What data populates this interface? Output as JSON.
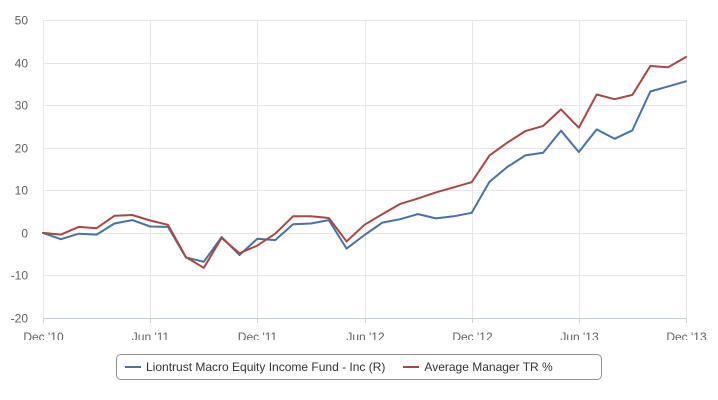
{
  "chart_data": {
    "type": "line",
    "x": [
      "Dec '10",
      "Jan '11",
      "Feb '11",
      "Mar '11",
      "Apr '11",
      "May '11",
      "Jun '11",
      "Jul '11",
      "Aug '11",
      "Sep '11",
      "Oct '11",
      "Nov '11",
      "Dec '11",
      "Jan '12",
      "Feb '12",
      "Mar '12",
      "Apr '12",
      "May '12",
      "Jun '12",
      "Jul '12",
      "Aug '12",
      "Sep '12",
      "Oct '12",
      "Nov '12",
      "Dec '12",
      "Jan '13",
      "Feb '13",
      "Mar '13",
      "Apr '13",
      "May '13",
      "Jun '13",
      "Jul '13",
      "Aug '13",
      "Sep '13",
      "Oct '13",
      "Nov '13",
      "Dec '13"
    ],
    "x_tick_labels": [
      "Dec '10",
      "Jun '11",
      "Dec '11",
      "Jun '12",
      "Dec '12",
      "Jun '13",
      "Dec '13"
    ],
    "series": [
      {
        "name": "Liontrust Macro Equity Income Fund - Inc (R)",
        "color": "#4572a7",
        "values": [
          0,
          -1.5,
          -0.2,
          -0.4,
          2.2,
          3.0,
          1.5,
          1.4,
          -5.8,
          -6.8,
          -1.0,
          -5.2,
          -1.4,
          -1.7,
          2.0,
          2.2,
          3.0,
          -3.7,
          -0.5,
          2.4,
          3.2,
          4.4,
          3.4,
          3.9,
          4.7,
          12.0,
          15.5,
          18.2,
          18.8,
          24.0,
          19.0,
          24.3,
          22.1,
          24.1,
          33.2,
          34.4,
          35.6
        ]
      },
      {
        "name": "Average Manager TR %",
        "color": "#aa4643",
        "values": [
          0,
          -0.4,
          1.4,
          1.1,
          4.0,
          4.2,
          2.9,
          1.9,
          -5.7,
          -8.2,
          -1.2,
          -4.8,
          -3.0,
          -0.2,
          3.9,
          3.9,
          3.5,
          -2.0,
          1.9,
          4.4,
          6.8,
          8.1,
          9.5,
          10.7,
          11.9,
          18.2,
          21.2,
          23.9,
          25.1,
          29.0,
          24.7,
          32.5,
          31.4,
          32.4,
          39.2,
          38.9,
          41.3
        ]
      }
    ],
    "y_ticks": [
      50,
      40,
      30,
      20,
      10,
      0,
      -10,
      -20
    ],
    "ylim": [
      -20,
      50
    ],
    "grid": true,
    "legend_placement": "bottom-center"
  }
}
